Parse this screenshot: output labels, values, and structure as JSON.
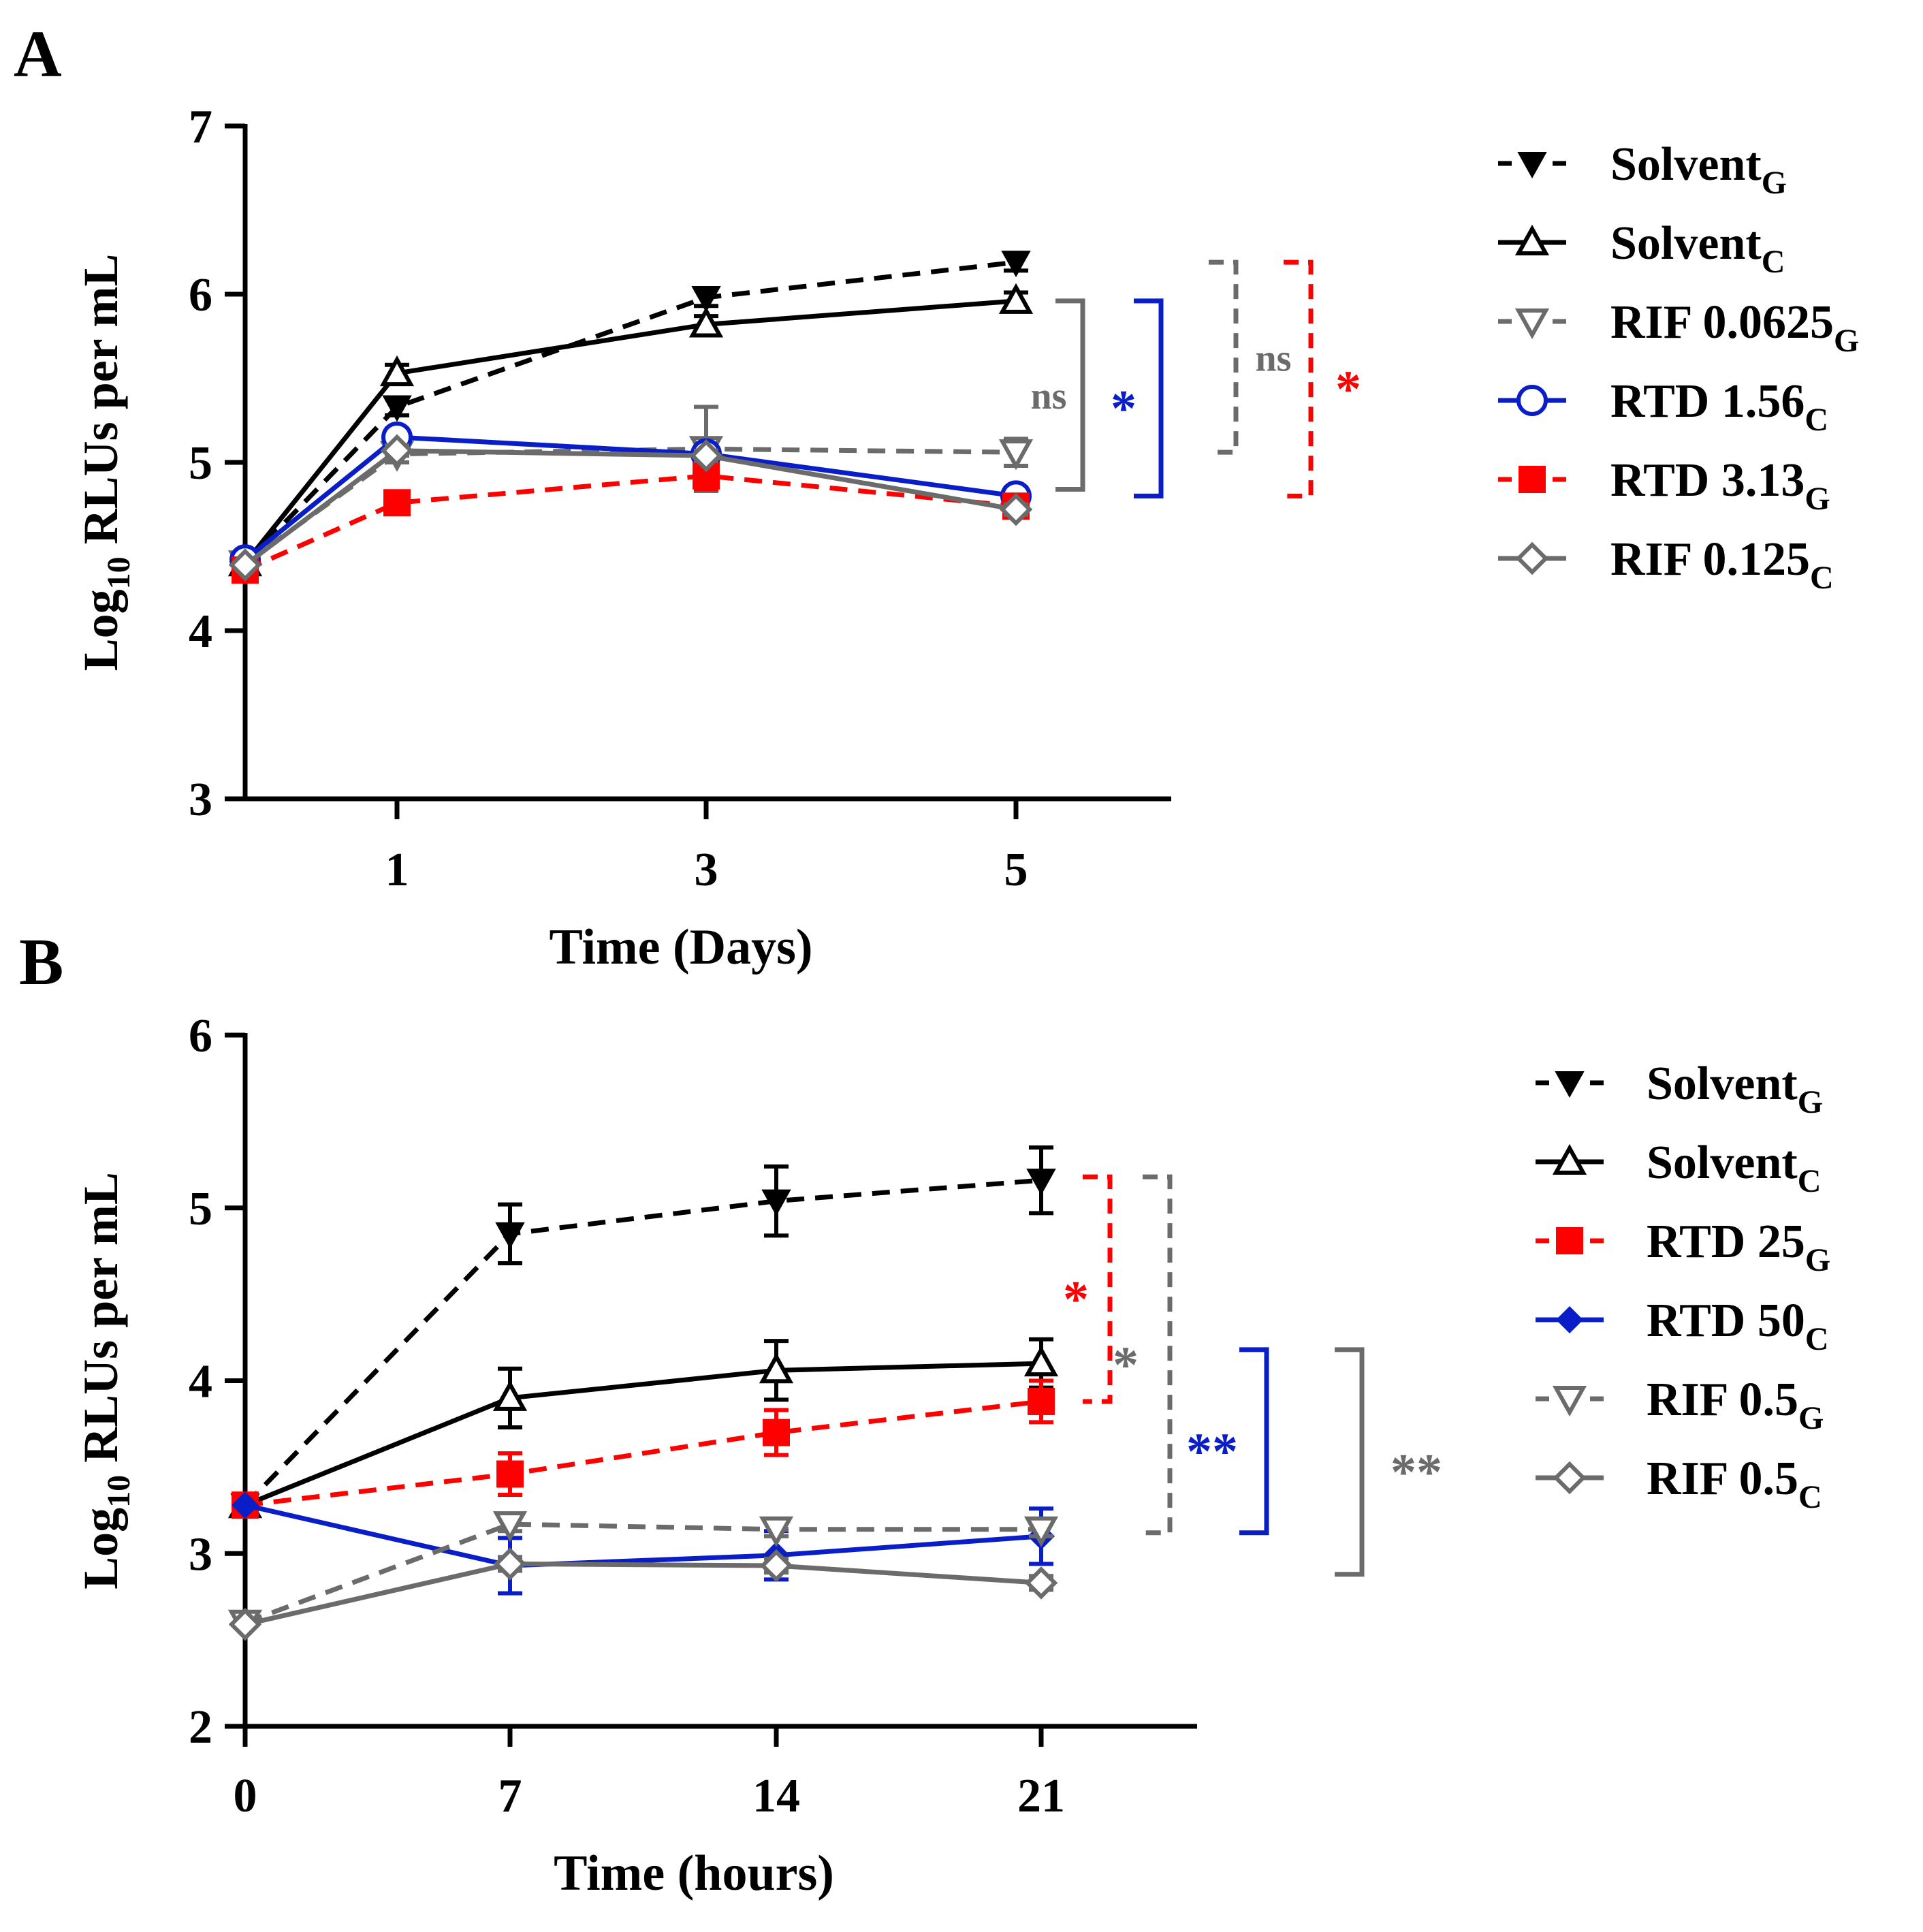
{
  "figure": {
    "panel_labels": [
      "A",
      "B"
    ]
  },
  "chart_data": [
    {
      "panel": "A",
      "type": "line",
      "xlabel": "Time (Days)",
      "ylabel_main": "Log",
      "ylabel_sub": "10",
      "ylabel_rest": " RLUs per mL",
      "x_ticks": [
        1,
        3,
        5
      ],
      "y_ticks": [
        3,
        4,
        5,
        6,
        7
      ],
      "xlim": [
        0,
        6
      ],
      "ylim": [
        3,
        7
      ],
      "legend_position": "right",
      "series": [
        {
          "name": "Solvent",
          "sub": "G",
          "color": "#000000",
          "dashed": true,
          "marker": "triangle-down-filled",
          "x": [
            0,
            1,
            3,
            5
          ],
          "y": [
            4.4,
            5.33,
            5.98,
            6.19
          ],
          "err": [
            0,
            0.05,
            0.05,
            0.05
          ]
        },
        {
          "name": "Solvent",
          "sub": "C",
          "color": "#000000",
          "dashed": false,
          "marker": "triangle-up-open",
          "x": [
            0,
            1,
            3,
            5
          ],
          "y": [
            4.4,
            5.53,
            5.82,
            5.96
          ],
          "err": [
            0,
            0.05,
            0.05,
            0.05
          ]
        },
        {
          "name": "RIF 0.0625",
          "sub": "G",
          "color": "#6b6b6b",
          "dashed": true,
          "marker": "triangle-down-open",
          "x": [
            0,
            1,
            3,
            5
          ],
          "y": [
            4.4,
            5.05,
            5.08,
            5.06
          ],
          "err": [
            0,
            0.05,
            0.25,
            0.08
          ]
        },
        {
          "name": "RTD 1.56",
          "sub": "C",
          "color": "#0a1ec8",
          "dashed": false,
          "marker": "circle-open",
          "x": [
            0,
            1,
            3,
            5
          ],
          "y": [
            4.42,
            5.15,
            5.05,
            4.8
          ],
          "err": [
            0,
            0.05,
            0.05,
            0.05
          ]
        },
        {
          "name": "RTD 3.13",
          "sub": "G",
          "color": "#ff0000",
          "dashed": true,
          "marker": "square-filled",
          "x": [
            0,
            1,
            3,
            5
          ],
          "y": [
            4.36,
            4.76,
            4.92,
            4.74
          ],
          "err": [
            0,
            0.03,
            0.08,
            0.05
          ]
        },
        {
          "name": "RIF 0.125",
          "sub": "C",
          "color": "#6b6b6b",
          "dashed": false,
          "marker": "diamond-open",
          "x": [
            0,
            1,
            3,
            5
          ],
          "y": [
            4.39,
            5.07,
            5.04,
            4.72
          ],
          "err": [
            0,
            0.03,
            0.03,
            0.03
          ]
        }
      ],
      "annotations": [
        {
          "label": "ns",
          "color": "#6b6b6b",
          "dashed": false,
          "y1": 5.96,
          "y2": 4.84,
          "label_side": "left",
          "col": 0
        },
        {
          "label": "*",
          "color": "#0a1ec8",
          "dashed": false,
          "y1": 5.96,
          "y2": 4.8,
          "label_side": "left",
          "col": 1
        },
        {
          "label": "ns",
          "color": "#6b6b6b",
          "dashed": true,
          "y1": 6.19,
          "y2": 5.06,
          "label_side": "right",
          "col": 2
        },
        {
          "label": "*",
          "color": "#ff0000",
          "dashed": true,
          "y1": 6.19,
          "y2": 4.8,
          "label_side": "right",
          "col": 3
        }
      ]
    },
    {
      "panel": "B",
      "type": "line",
      "xlabel": "Time (hours)",
      "ylabel_main": "Log",
      "ylabel_sub": "10",
      "ylabel_rest": " RLUs per mL",
      "x_ticks": [
        0,
        7,
        14,
        21
      ],
      "y_ticks": [
        2,
        3,
        4,
        5,
        6
      ],
      "xlim": [
        0,
        25
      ],
      "ylim": [
        2,
        6
      ],
      "legend_position": "right",
      "series": [
        {
          "name": "Solvent",
          "sub": "G",
          "color": "#000000",
          "dashed": true,
          "marker": "triangle-down-filled",
          "x": [
            0,
            7,
            14,
            21
          ],
          "y": [
            3.28,
            4.85,
            5.04,
            5.16
          ],
          "err": [
            0,
            0.17,
            0.2,
            0.19
          ]
        },
        {
          "name": "Solvent",
          "sub": "C",
          "color": "#000000",
          "dashed": false,
          "marker": "triangle-up-open",
          "x": [
            0,
            7,
            14,
            21
          ],
          "y": [
            3.28,
            3.9,
            4.06,
            4.1
          ],
          "err": [
            0,
            0.17,
            0.17,
            0.14
          ]
        },
        {
          "name": "RTD 25",
          "sub": "G",
          "color": "#ff0000",
          "dashed": true,
          "marker": "square-filled",
          "x": [
            0,
            7,
            14,
            21
          ],
          "y": [
            3.28,
            3.46,
            3.7,
            3.88
          ],
          "err": [
            0,
            0.12,
            0.13,
            0.12
          ]
        },
        {
          "name": "RTD 50",
          "sub": "C",
          "color": "#0a1ec8",
          "dashed": false,
          "marker": "diamond-filled",
          "x": [
            0,
            7,
            14,
            21
          ],
          "y": [
            3.28,
            2.93,
            2.99,
            3.1
          ],
          "err": [
            0,
            0.16,
            0.14,
            0.16
          ]
        },
        {
          "name": "RIF 0.5",
          "sub": "G",
          "color": "#6b6b6b",
          "dashed": true,
          "marker": "triangle-down-open",
          "x": [
            0,
            7,
            14,
            21
          ],
          "y": [
            2.6,
            3.17,
            3.14,
            3.14
          ],
          "err": [
            0,
            0.04,
            0.04,
            0.04
          ]
        },
        {
          "name": "RIF 0.5",
          "sub": "C",
          "color": "#6b6b6b",
          "dashed": false,
          "marker": "diamond-open",
          "x": [
            0,
            7,
            14,
            21
          ],
          "y": [
            2.59,
            2.94,
            2.93,
            2.83
          ],
          "err": [
            0,
            0.04,
            0.04,
            0.04
          ]
        }
      ],
      "annotations": [
        {
          "label": "*",
          "color": "#ff0000",
          "dashed": true,
          "y1": 5.18,
          "y2": 3.88,
          "label_side": "left",
          "col": 0
        },
        {
          "label": "*",
          "color": "#6b6b6b",
          "dashed": true,
          "y1": 5.18,
          "y2": 3.12,
          "label_side": "left",
          "col": 1
        },
        {
          "label": "**",
          "color": "#0a1ec8",
          "dashed": false,
          "y1": 4.18,
          "y2": 3.12,
          "label_side": "left",
          "col": 2
        },
        {
          "label": "**",
          "color": "#6b6b6b",
          "dashed": false,
          "y1": 4.18,
          "y2": 2.88,
          "label_side": "right",
          "col": 3
        }
      ]
    }
  ]
}
